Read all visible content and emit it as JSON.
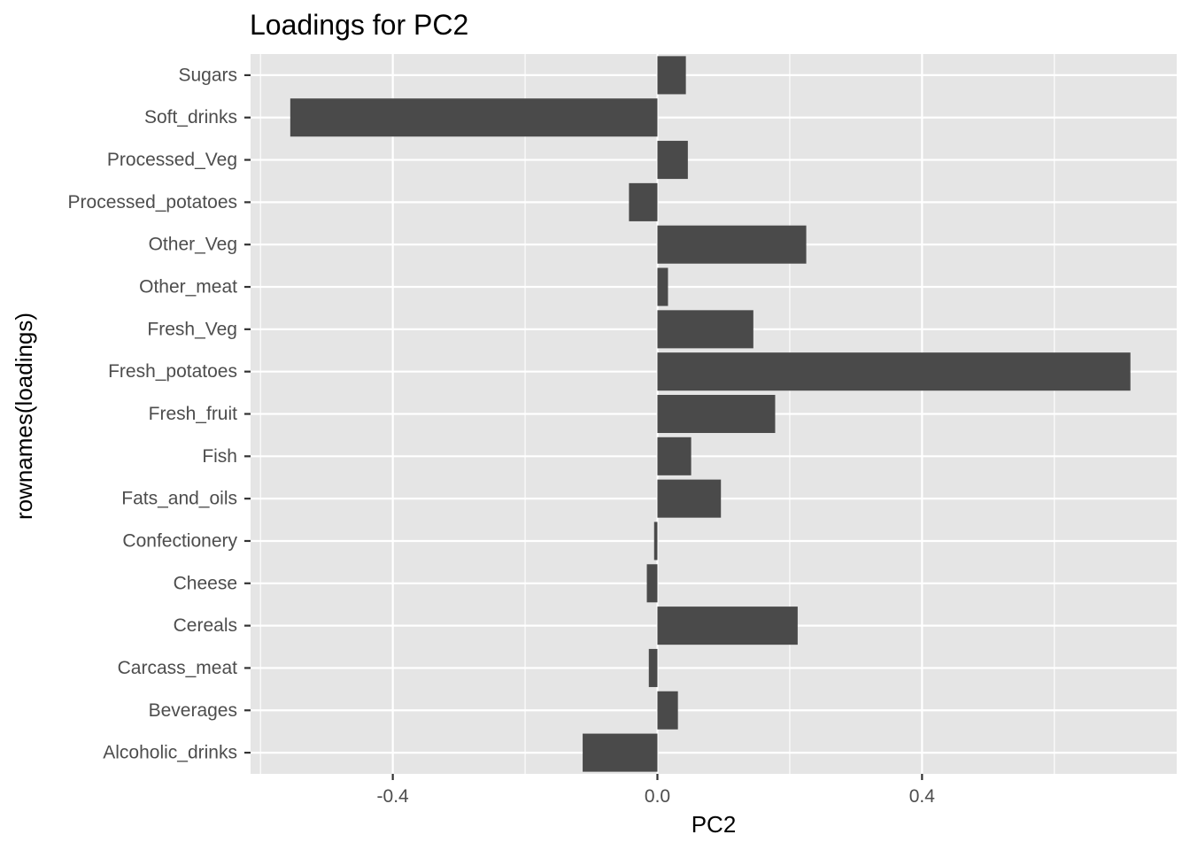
{
  "chart_data": {
    "type": "bar",
    "orientation": "horizontal",
    "title": "Loadings for PC2",
    "xlabel": "PC2",
    "ylabel": "rownames(loadings)",
    "categories": [
      "Alcoholic_drinks",
      "Beverages",
      "Carcass_meat",
      "Cereals",
      "Cheese",
      "Confectionery",
      "Fats_and_oils",
      "Fish",
      "Fresh_fruit",
      "Fresh_potatoes",
      "Fresh_Veg",
      "Other_meat",
      "Other_Veg",
      "Processed_potatoes",
      "Processed_Veg",
      "Soft_drinks",
      "Sugars"
    ],
    "values": [
      -0.113,
      0.031,
      -0.013,
      0.212,
      -0.016,
      -0.005,
      0.096,
      0.051,
      0.178,
      0.715,
      0.145,
      0.016,
      0.225,
      -0.043,
      0.046,
      -0.555,
      0.043
    ],
    "xlim": [
      -0.615,
      0.785
    ],
    "xticks": [
      -0.4,
      0.0,
      0.4
    ],
    "xtick_labels": [
      "-0.4",
      "0.0",
      "0.4"
    ],
    "xminor": [
      -0.6,
      -0.2,
      0.2,
      0.6
    ],
    "grid": true,
    "bar_color": "#4a4a4a",
    "panel_color": "#e5e5e5",
    "grid_color": "#ffffff"
  }
}
